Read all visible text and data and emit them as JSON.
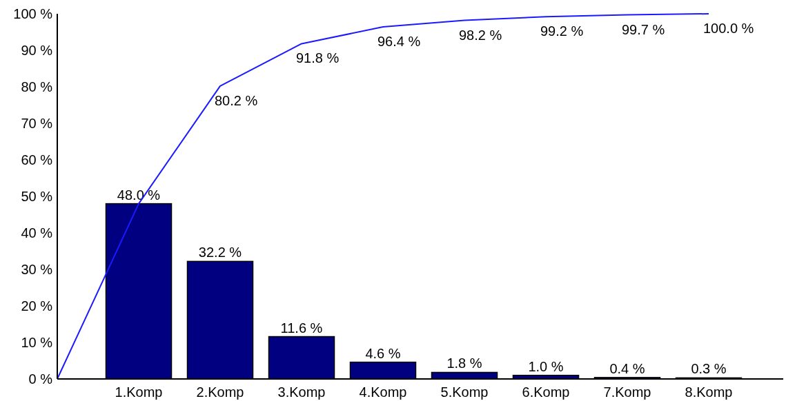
{
  "chart_data": {
    "type": "bar",
    "categories": [
      null,
      "1.Komp",
      "2.Komp",
      "3.Komp",
      "4.Komp",
      "5.Komp",
      "6.Komp",
      "7.Komp",
      "8.Komp"
    ],
    "ylim": [
      0,
      100
    ],
    "yticks": [
      {
        "value": 0,
        "label": "0 %"
      },
      {
        "value": 10,
        "label": "10 %"
      },
      {
        "value": 20,
        "label": "20 %"
      },
      {
        "value": 30,
        "label": "30 %"
      },
      {
        "value": 40,
        "label": "40 %"
      },
      {
        "value": 50,
        "label": "50 %"
      },
      {
        "value": 60,
        "label": "60 %"
      },
      {
        "value": 70,
        "label": "70 %"
      },
      {
        "value": 80,
        "label": "80 %"
      },
      {
        "value": 90,
        "label": "90 %"
      },
      {
        "value": 100,
        "label": "100 %"
      }
    ],
    "grid": false,
    "series": [
      {
        "color": "#000080",
        "values": [
          null,
          48.0,
          32.2,
          11.6,
          4.6,
          1.8,
          1.0,
          0.4,
          0.3
        ],
        "value_labels": [
          null,
          "48.0 %",
          "32.2 %",
          "11.6 %",
          "4.6 %",
          "1.8 %",
          "1.0 %",
          "0.4 %",
          "0.3 %"
        ]
      },
      {
        "type": "line",
        "color": "#1a1aff",
        "values": [
          0,
          48.0,
          80.2,
          91.8,
          96.4,
          98.2,
          99.2,
          99.7,
          100.0
        ],
        "value_labels": [
          null,
          null,
          "80.2 %",
          "91.8 %",
          "96.4 %",
          "98.2 %",
          "99.2 %",
          "99.7 %",
          "100.0 %"
        ]
      }
    ]
  }
}
